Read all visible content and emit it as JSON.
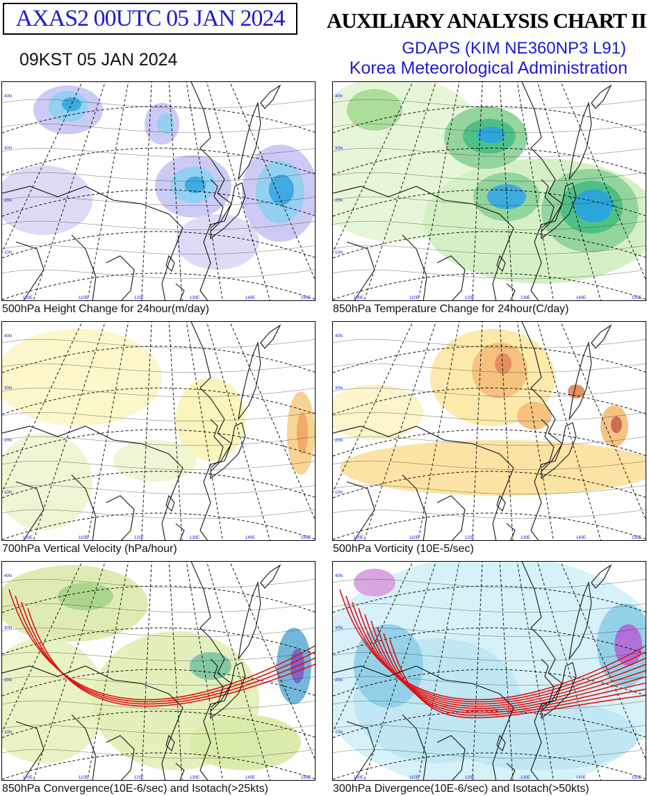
{
  "header": {
    "product_id": "AXAS2  00UTC 05 JAN 2024",
    "local_time": "09KST 05 JAN 2024",
    "chart_title": "AUXILIARY ANALYSIS CHART II",
    "model": "GDAPS (KIM NE360NP3 L91)",
    "agency": "Korea Meteorological Administration"
  },
  "panels": [
    {
      "id": "p1",
      "caption": "500hPa Height Change for 24hour(m/day)",
      "palette": "height"
    },
    {
      "id": "p2",
      "caption": "850hPa Temperature Change for 24hour(C/day)",
      "palette": "temp"
    },
    {
      "id": "p3",
      "caption": "700hPa Vertical Velocity (hPa/hour)",
      "palette": "vv"
    },
    {
      "id": "p4",
      "caption": "500hPa Vorticity (10E-5/sec)",
      "palette": "vort"
    },
    {
      "id": "p5",
      "caption": "850hPa Convergence(10E-6/sec) and Isotach(>25kts)",
      "palette": "conv"
    },
    {
      "id": "p6",
      "caption": "300hPa Divergence(10E-6/sec) and Isotach(>50kts)",
      "palette": "div"
    }
  ],
  "grid_labels": {
    "lat_left": [
      "40N",
      "30N",
      "20N",
      "10N"
    ],
    "lon_bottom": [
      "100E",
      "110E",
      "120E",
      "130E",
      "140E",
      "150E"
    ]
  },
  "colors": {
    "title_blue": "#1a1ad8",
    "isotach_red": "#e01010"
  }
}
